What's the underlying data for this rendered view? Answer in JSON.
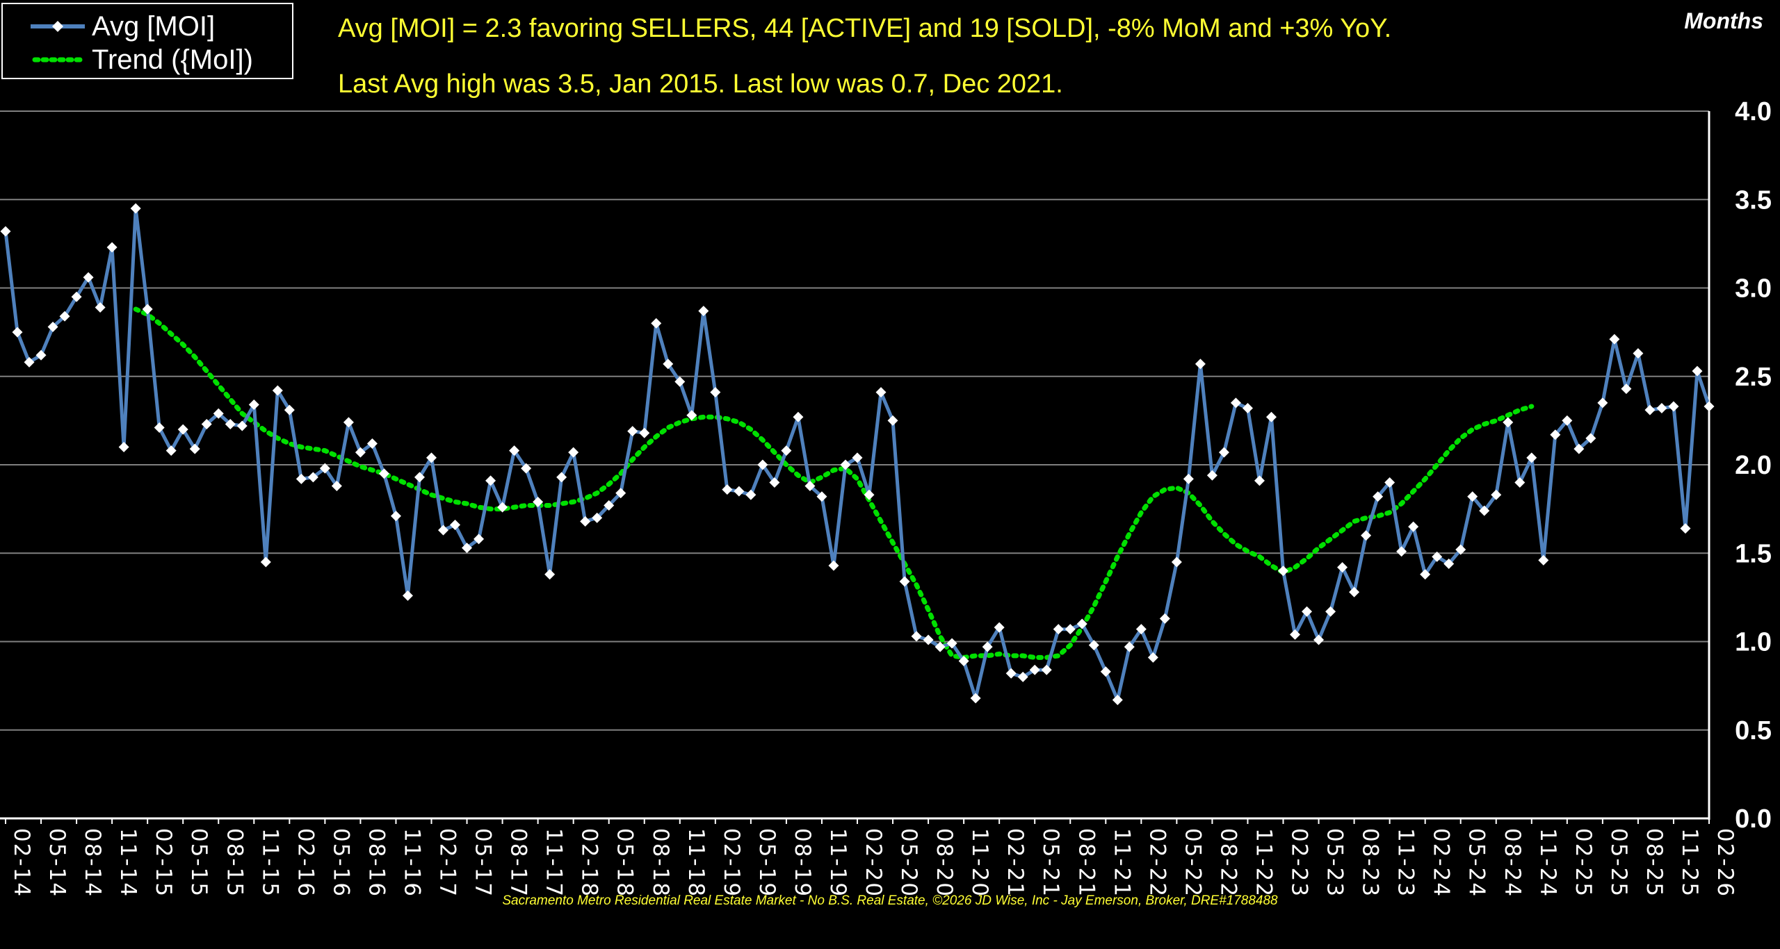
{
  "legend": {
    "series_label": "Avg [MOI]",
    "trend_label": "Trend ({MoI])"
  },
  "headline": {
    "line1": "Avg [MOI] = 2.3 favoring SELLERS, 44 [ACTIVE] and 19 [SOLD], -8% MoM and +3% YoY.",
    "line2": "Last Avg high was 3.5, Jan 2015. Last low was 0.7, Dec 2021."
  },
  "axis_title": "Months",
  "footer": "Sacramento Metro Residential Real Estate Market - No B.S. Real Estate, ©2026 JD Wise, Inc - Jay Emerson, Broker, DRE#1788488",
  "colors": {
    "background": "#000000",
    "series": "#4f81bd",
    "marker": "#ffffff",
    "trend": "#00e000",
    "gridline": "#808080",
    "text": "#ffffff",
    "highlight_text": "#ffff33"
  },
  "chart_data": {
    "type": "line",
    "title": "",
    "xlabel": "",
    "ylabel": "Months",
    "ylim": [
      0,
      4
    ],
    "yticks": [
      "0.0",
      "0.5",
      "1.0",
      "1.5",
      "2.0",
      "2.5",
      "3.0",
      "3.5",
      "4.0"
    ],
    "x_start": "2014-02",
    "x_end": "2026-02",
    "xtick_labels": [
      "02-14",
      "05-14",
      "08-14",
      "11-14",
      "02-15",
      "05-15",
      "08-15",
      "11-15",
      "02-16",
      "05-16",
      "08-16",
      "11-16",
      "02-17",
      "05-17",
      "08-17",
      "11-17",
      "02-18",
      "05-18",
      "08-18",
      "11-18",
      "02-19",
      "05-19",
      "08-19",
      "11-19",
      "02-20",
      "05-20",
      "08-20",
      "11-20",
      "02-21",
      "05-21",
      "08-21",
      "11-21",
      "02-22",
      "05-22",
      "08-22",
      "11-22",
      "02-23",
      "05-23",
      "08-23",
      "11-23",
      "02-24",
      "05-24",
      "08-24",
      "11-24",
      "02-25",
      "05-25",
      "08-25",
      "11-25",
      "02-26"
    ],
    "series": [
      {
        "name": "Avg [MOI]",
        "style": "solid line with diamond markers",
        "values": [
          3.32,
          2.75,
          2.58,
          2.62,
          2.78,
          2.84,
          2.95,
          3.06,
          2.89,
          3.23,
          2.1,
          3.45,
          2.88,
          2.21,
          2.08,
          2.2,
          2.09,
          2.23,
          2.29,
          2.23,
          2.22,
          2.34,
          1.45,
          2.42,
          2.31,
          1.92,
          1.93,
          1.98,
          1.88,
          2.24,
          2.07,
          2.12,
          1.95,
          1.71,
          1.26,
          1.93,
          2.04,
          1.63,
          1.66,
          1.53,
          1.58,
          1.91,
          1.76,
          2.08,
          1.98,
          1.79,
          1.38,
          1.93,
          2.07,
          1.68,
          1.7,
          1.77,
          1.84,
          2.19,
          2.18,
          2.8,
          2.57,
          2.47,
          2.28,
          2.87,
          2.41,
          1.86,
          1.85,
          1.83,
          2.0,
          1.9,
          2.08,
          2.27,
          1.88,
          1.82,
          1.43,
          2.0,
          2.04,
          1.83,
          2.41,
          2.25,
          1.34,
          1.03,
          1.01,
          0.97,
          0.99,
          0.89,
          0.68,
          0.97,
          1.08,
          0.82,
          0.8,
          0.84,
          0.84,
          1.07,
          1.07,
          1.1,
          0.98,
          0.83,
          0.67,
          0.97,
          1.07,
          0.91,
          1.13,
          1.45,
          1.92,
          2.57,
          1.94,
          2.07,
          2.35,
          2.32,
          1.91,
          2.27,
          1.4,
          1.04,
          1.17,
          1.01,
          1.17,
          1.42,
          1.28,
          1.6,
          1.82,
          1.9,
          1.51,
          1.65,
          1.38,
          1.48,
          1.44,
          1.52,
          1.82,
          1.74,
          1.83,
          2.24,
          1.9,
          2.04,
          1.46,
          2.17,
          2.25,
          2.09,
          2.15,
          2.35,
          2.71,
          2.43,
          2.63,
          2.31,
          2.32,
          2.33,
          1.64,
          2.53,
          2.33
        ]
      },
      {
        "name": "Trend ({MoI])",
        "style": "dotted line",
        "start_index": 11,
        "values": [
          2.88,
          2.85,
          2.8,
          2.74,
          2.68,
          2.61,
          2.53,
          2.45,
          2.37,
          2.29,
          2.24,
          2.19,
          2.15,
          2.12,
          2.1,
          2.09,
          2.08,
          2.05,
          2.02,
          1.99,
          1.97,
          1.95,
          1.92,
          1.89,
          1.86,
          1.83,
          1.81,
          1.79,
          1.78,
          1.76,
          1.75,
          1.75,
          1.76,
          1.77,
          1.77,
          1.77,
          1.78,
          1.79,
          1.81,
          1.84,
          1.89,
          1.95,
          2.03,
          2.1,
          2.16,
          2.21,
          2.24,
          2.26,
          2.27,
          2.27,
          2.26,
          2.24,
          2.2,
          2.14,
          2.07,
          2.0,
          1.94,
          1.9,
          1.93,
          1.97,
          1.98,
          1.92,
          1.8,
          1.68,
          1.56,
          1.44,
          1.32,
          1.18,
          1.03,
          0.92,
          0.91,
          0.92,
          0.92,
          0.93,
          0.92,
          0.92,
          0.91,
          0.91,
          0.92,
          0.98,
          1.08,
          1.2,
          1.34,
          1.48,
          1.61,
          1.73,
          1.82,
          1.86,
          1.87,
          1.84,
          1.77,
          1.68,
          1.61,
          1.55,
          1.51,
          1.48,
          1.43,
          1.39,
          1.42,
          1.47,
          1.53,
          1.58,
          1.63,
          1.68,
          1.7,
          1.71,
          1.73,
          1.78,
          1.85,
          1.92,
          2.0,
          2.08,
          2.15,
          2.2,
          2.23,
          2.25,
          2.28,
          2.31,
          2.33
        ]
      }
    ],
    "grid": true,
    "legend_position": "top-left"
  }
}
